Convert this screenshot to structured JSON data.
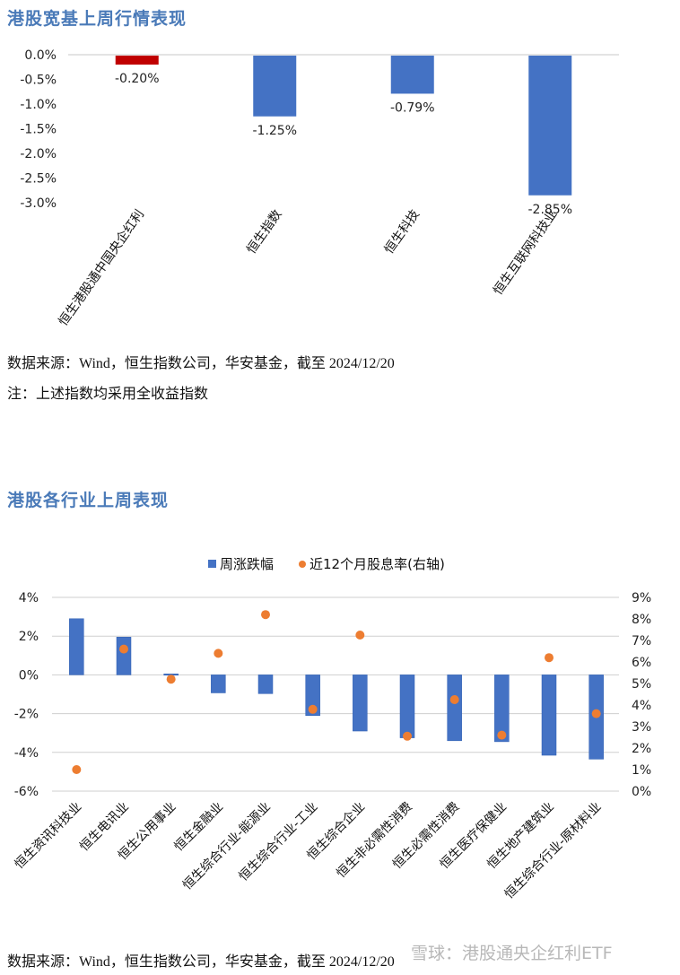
{
  "section1": {
    "title": "港股宽基上周行情表现",
    "source": "数据来源：Wind，恒生指数公司，华安基金，截至 2024/12/20",
    "note": "注：上述指数均采用全收益指数"
  },
  "section2": {
    "title": "港股各行业上周表现",
    "source": "数据来源：Wind，恒生指数公司，华安基金，截至 2024/12/20"
  },
  "watermark": "雪球：港股通央企红利ETF",
  "chart_data": [
    {
      "type": "bar",
      "title": "港股宽基上周行情表现",
      "categories": [
        "恒生港股通中国央企红利",
        "恒生指数",
        "恒生科技",
        "恒生互联网科技业"
      ],
      "values": [
        -0.2,
        -1.25,
        -0.79,
        -2.85
      ],
      "value_labels": [
        "-0.20%",
        "-1.25%",
        "-0.79%",
        "-2.85%"
      ],
      "bar_colors": [
        "#c00000",
        "#4472c4",
        "#4472c4",
        "#4472c4"
      ],
      "xlabel": "",
      "ylabel": "",
      "ylim": [
        -3.0,
        0.0
      ],
      "yticks": [
        "0.0%",
        "-0.5%",
        "-1.0%",
        "-1.5%",
        "-2.0%",
        "-2.5%",
        "-3.0%"
      ],
      "grid": false,
      "legend": "none"
    },
    {
      "type": "bar",
      "title": "港股各行业上周表现",
      "categories": [
        "恒生资讯科技业",
        "恒生电讯业",
        "恒生公用事业",
        "恒生金融业",
        "恒生综合行业-能源业",
        "恒生综合行业-工业",
        "恒生综合企业",
        "恒生非必需性消费",
        "恒生必需性消费",
        "恒生医疗保健业",
        "恒生地产建筑业",
        "恒生综合行业-原材料业"
      ],
      "series": [
        {
          "name": "周涨跌幅",
          "type": "bar",
          "axis": "left",
          "color": "#4472c4",
          "values": [
            2.9,
            1.95,
            0.05,
            -0.93,
            -0.97,
            -2.1,
            -2.9,
            -3.25,
            -3.4,
            -3.45,
            -4.15,
            -4.35
          ]
        },
        {
          "name": "近12个月股息率(右轴)",
          "type": "scatter",
          "axis": "right",
          "color": "#ed7d31",
          "values": [
            1.0,
            6.6,
            5.2,
            6.4,
            8.2,
            3.8,
            7.25,
            2.55,
            4.25,
            2.6,
            6.2,
            3.6
          ]
        }
      ],
      "ylim": [
        -6,
        4
      ],
      "yticks": [
        "4%",
        "2%",
        "0%",
        "-2%",
        "-4%",
        "-6%"
      ],
      "y2lim": [
        0,
        9
      ],
      "y2ticks": [
        "9%",
        "8%",
        "7%",
        "6%",
        "5%",
        "4%",
        "3%",
        "2%",
        "1%",
        "0%"
      ],
      "grid": true,
      "legend": "top"
    }
  ]
}
